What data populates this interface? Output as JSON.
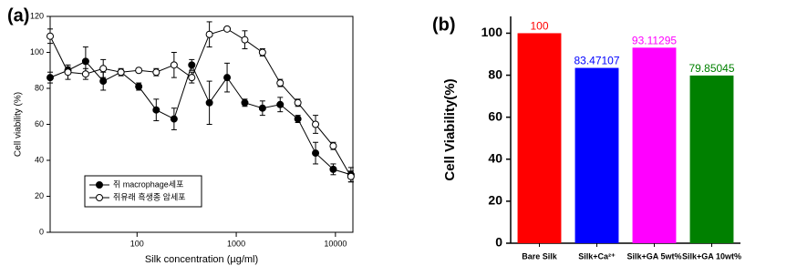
{
  "chart_data": [
    {
      "type": "line",
      "panel_label": "(a)",
      "x_label": "Silk concentration (µg/ml)",
      "y_label": "Cell viability (%)",
      "xscale": "log",
      "xlim": [
        13.3,
        15000
      ],
      "xticks": [
        100,
        1000,
        10000
      ],
      "ylim": [
        0,
        120
      ],
      "yticks": [
        0,
        20,
        40,
        60,
        80,
        100,
        120
      ],
      "legend": "lower left",
      "x": [
        13.3,
        20.1,
        30.3,
        45.6,
        68.8,
        104,
        156,
        236,
        356,
        536,
        809,
        1220,
        1839,
        2773,
        4180,
        6303,
        9504,
        14330
      ],
      "series": [
        {
          "name": "쥐 macrophage세포",
          "color": "#000000",
          "values": [
            86,
            90,
            95,
            84,
            89,
            81,
            68,
            63,
            93,
            72,
            86,
            72,
            69,
            71,
            63,
            44,
            35,
            32
          ],
          "errors": [
            3,
            2,
            8,
            5,
            1,
            2,
            6,
            6,
            3,
            12,
            8,
            2,
            4,
            4,
            2,
            6,
            3,
            4
          ]
        },
        {
          "name": "쥐유래 흑생종 암세포",
          "color": "#ffffff",
          "values": [
            109,
            89,
            88,
            91,
            89,
            90,
            89,
            93,
            86,
            110,
            113,
            107,
            100,
            83,
            72,
            60,
            48,
            31
          ],
          "errors": [
            4,
            4,
            3,
            5,
            2,
            1,
            2,
            7,
            3,
            7,
            1,
            5,
            2,
            2,
            2,
            5,
            2,
            3
          ]
        }
      ]
    },
    {
      "type": "bar",
      "panel_label": "(b)",
      "y_label": "Cell Viability(%)",
      "categories": [
        "Bare Silk",
        "Silk+Ca²⁺",
        "Silk+GA 5wt%",
        "Silk+GA 10wt%"
      ],
      "values": [
        100,
        83.47107,
        93.11295,
        79.85045
      ],
      "colors": [
        "#ff0000",
        "#0000ff",
        "#ff00ff",
        "#008000"
      ],
      "ylim": [
        0,
        108
      ],
      "yticks": [
        0,
        20,
        40,
        60,
        80,
        100
      ]
    }
  ]
}
